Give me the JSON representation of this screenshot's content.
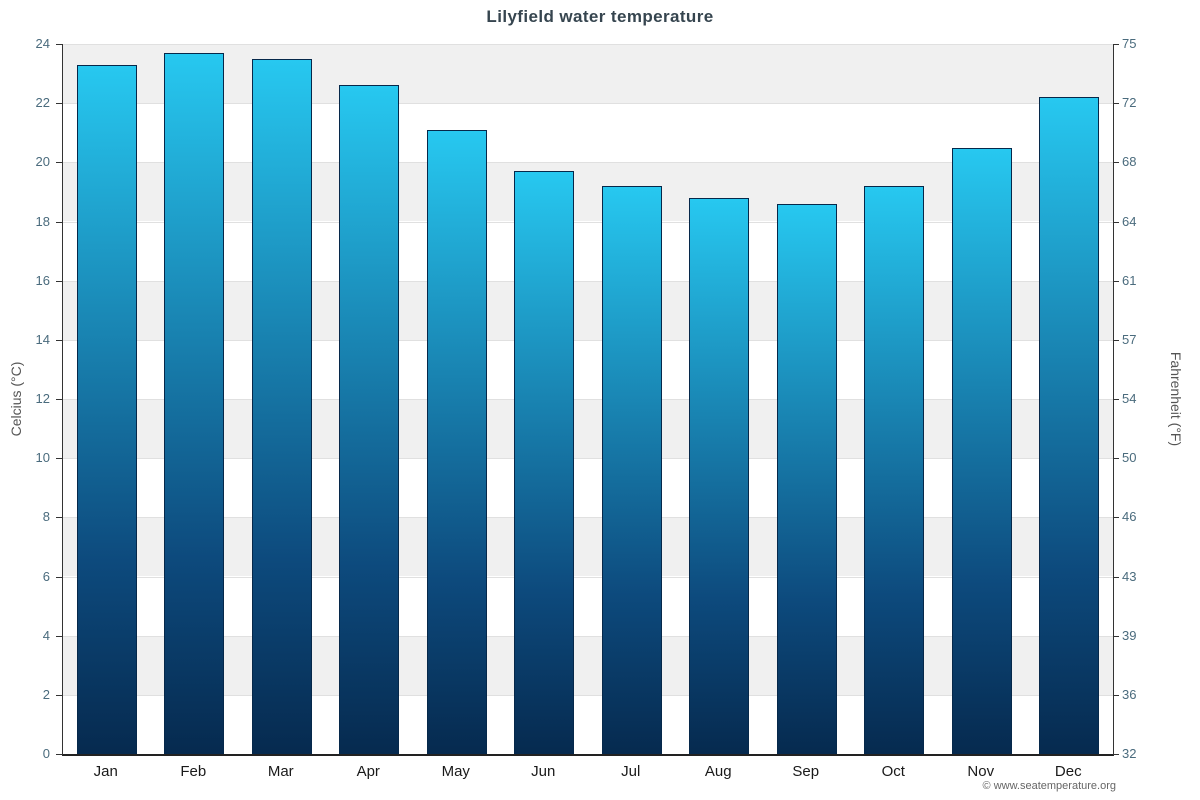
{
  "title": "Lilyfield water temperature",
  "footer": {
    "credit": "© www.seatemperature.org"
  },
  "chart_data": {
    "type": "bar",
    "title": "Lilyfield water temperature",
    "categories": [
      "Jan",
      "Feb",
      "Mar",
      "Apr",
      "May",
      "Jun",
      "Jul",
      "Aug",
      "Sep",
      "Oct",
      "Nov",
      "Dec"
    ],
    "values": [
      23.3,
      23.7,
      23.5,
      22.6,
      21.1,
      19.7,
      19.2,
      18.8,
      18.6,
      19.2,
      20.5,
      22.2
    ],
    "ylabel_left": "Celcius (°C)",
    "ylabel_right": "Fahrenheit (°F)",
    "ylim": [
      0,
      24
    ],
    "yticks_celsius": [
      "0",
      "2",
      "4",
      "6",
      "8",
      "10",
      "12",
      "14",
      "16",
      "18",
      "20",
      "22",
      "24"
    ],
    "yticks_fahrenheit": [
      "32",
      "36",
      "39",
      "43",
      "46",
      "50",
      "54",
      "57",
      "61",
      "64",
      "68",
      "72",
      "75"
    ],
    "grid": "horizontal-bands",
    "legend": "none",
    "colors": {
      "bar_top": "#27c8f0",
      "bar_mid": "#0d4a7d",
      "bar_bottom": "#062a4f",
      "bar_border": "#06284a",
      "band_light": "#f0f0f0",
      "band_white": "#ffffff",
      "axis": "#333333",
      "tick_text": "#4a6b7d",
      "title_text": "#36454f"
    }
  }
}
